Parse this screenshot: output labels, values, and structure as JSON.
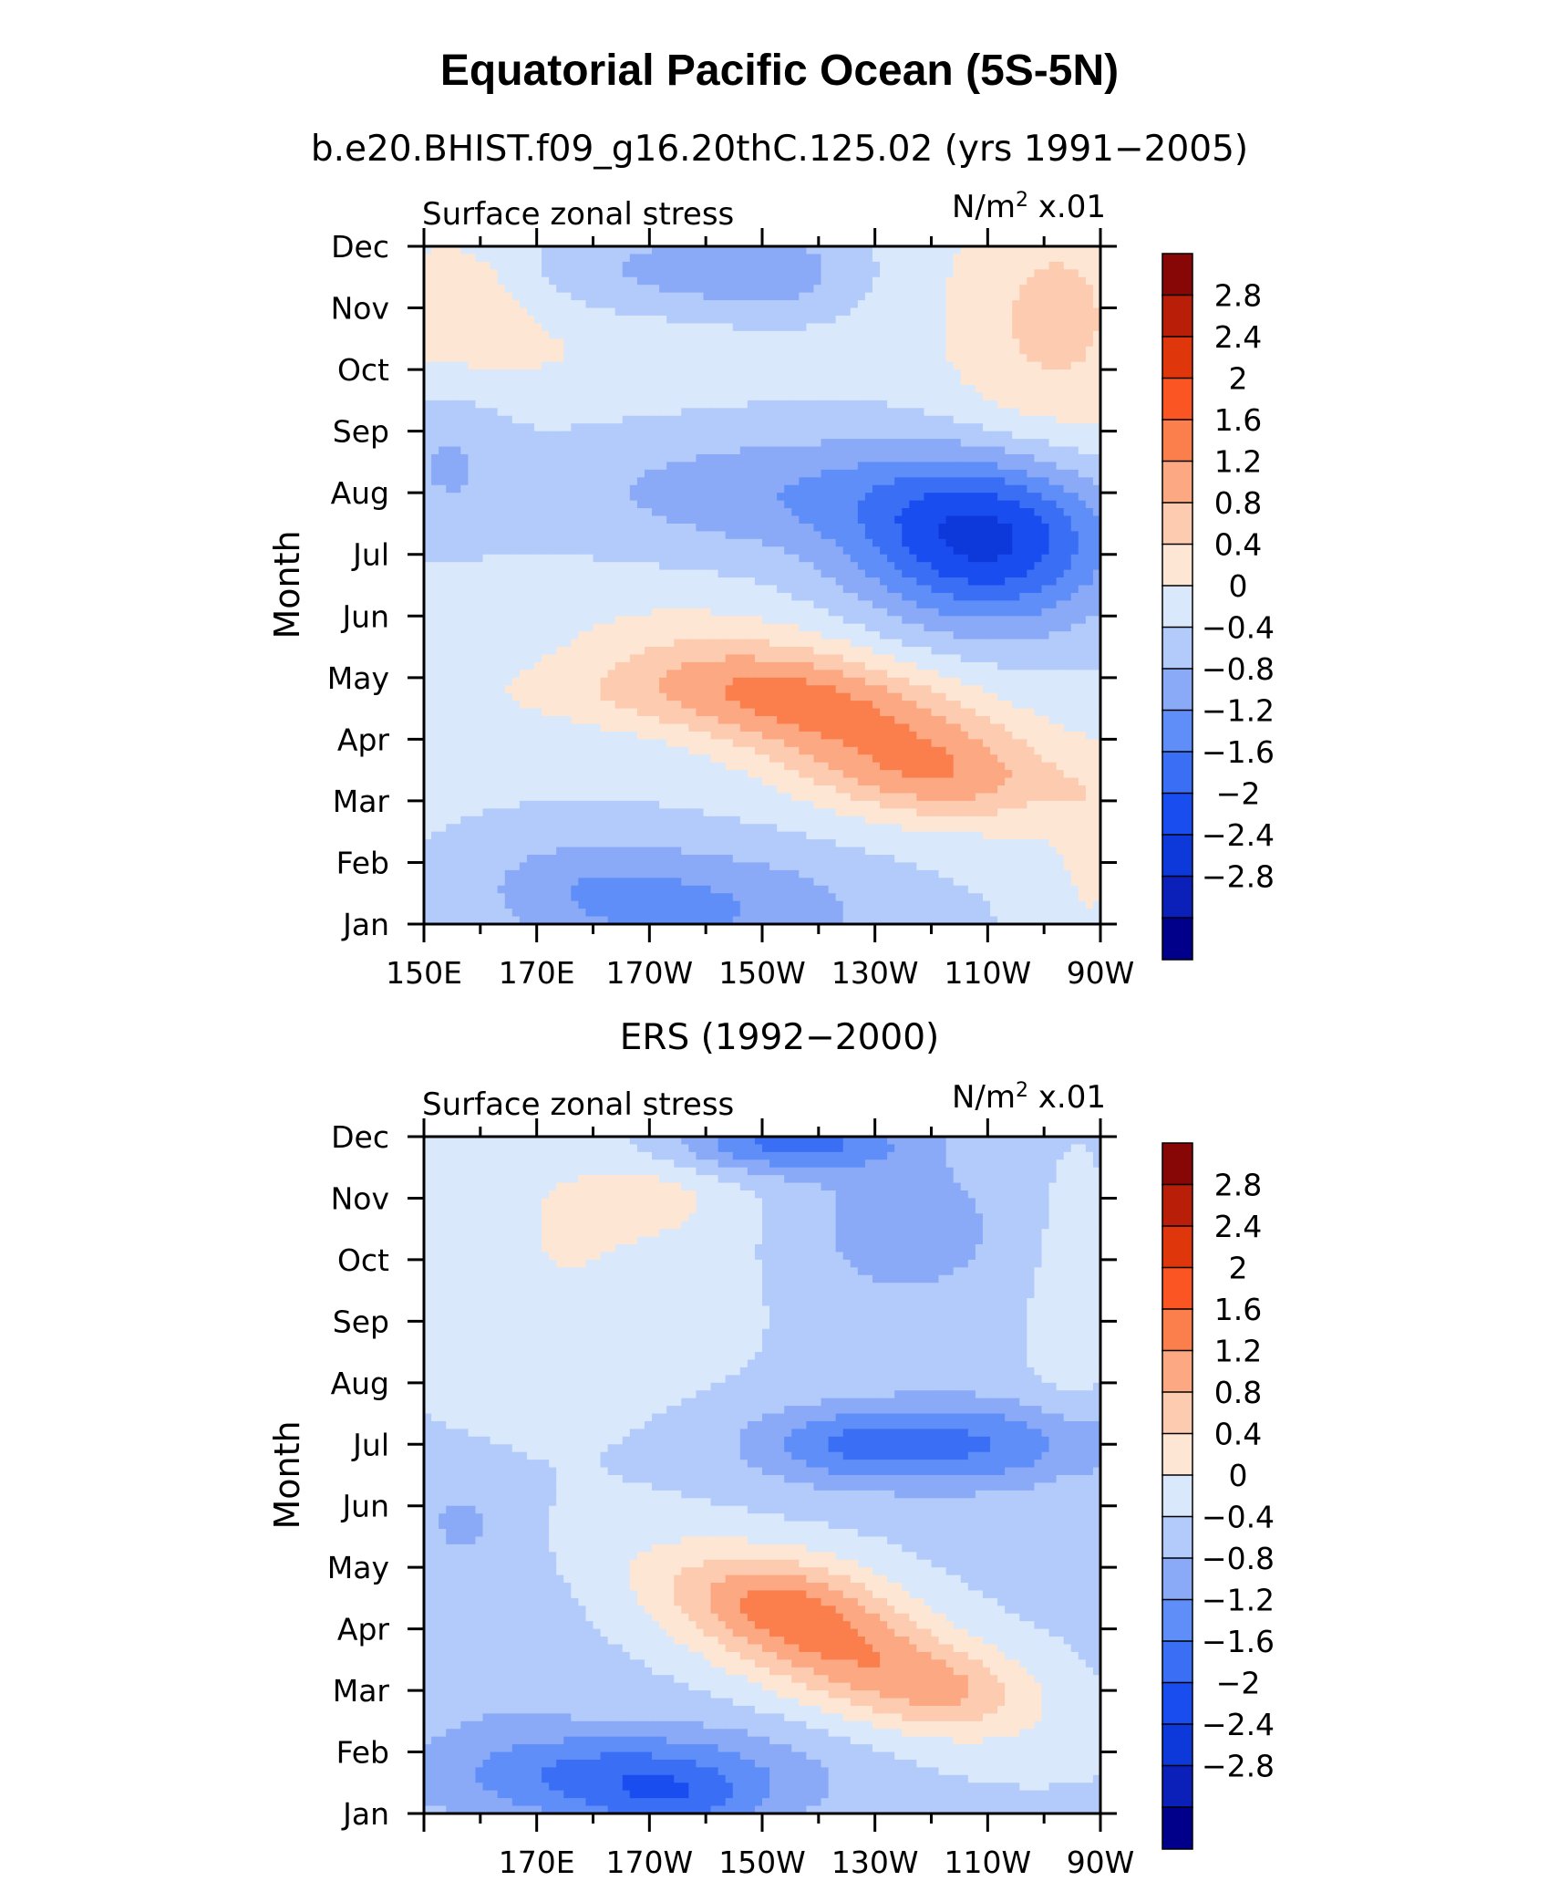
{
  "figure": {
    "main_title": "Equatorial Pacific Ocean (5S-5N)",
    "top_subtitle": "b.e20.BHIST.f09_g16.20thC.125.02 (yrs 1991−2005)",
    "bottom_subtitle": "ERS (1992−2000)"
  },
  "chart_data": [
    {
      "type": "heatmap",
      "name": "model",
      "panel_left_label": "Surface zonal stress",
      "units_main": "N/m",
      "units_sup": "2",
      "units_scale": "x.01",
      "ylabel": "Month",
      "yticks": [
        "Jan",
        "Feb",
        "Mar",
        "Apr",
        "May",
        "Jun",
        "Jul",
        "Aug",
        "Sep",
        "Oct",
        "Nov",
        "Dec"
      ],
      "xticks": [
        {
          "lon": 150,
          "label": "150E"
        },
        {
          "lon": 170,
          "label": "170E"
        },
        {
          "lon": 190,
          "label": "170W"
        },
        {
          "lon": 210,
          "label": "150W"
        },
        {
          "lon": 230,
          "label": "130W"
        },
        {
          "lon": 250,
          "label": "110W"
        },
        {
          "lon": 270,
          "label": "90W"
        }
      ],
      "xlim": [
        150,
        270
      ],
      "ylim": [
        1,
        12
      ],
      "blobs": [
        {
          "lon": 225,
          "mon": 4.3,
          "amp": 1.6,
          "slon": 26,
          "smon": 0.8,
          "tilt": -0.025
        },
        {
          "lon": 190,
          "mon": 4.75,
          "amp": 0.5,
          "slon": 25,
          "smon": 0.45
        },
        {
          "lon": 240,
          "mon": 3.3,
          "amp": 0.5,
          "slon": 14,
          "smon": 0.45
        },
        {
          "lon": 250,
          "mon": 7.2,
          "amp": -2.1,
          "slon": 16,
          "smon": 0.95
        },
        {
          "lon": 215,
          "mon": 8.0,
          "amp": -0.75,
          "slon": 28,
          "smon": 0.7
        },
        {
          "lon": 200,
          "mon": 1.2,
          "amp": -0.85,
          "slon": 22,
          "smon": 0.7
        },
        {
          "lon": 178,
          "mon": 1.7,
          "amp": -0.45,
          "slon": 14,
          "smon": 0.6
        },
        {
          "lon": 195,
          "mon": 11.6,
          "amp": -0.55,
          "slon": 18,
          "smon": 0.55
        },
        {
          "lon": 212,
          "mon": 11.6,
          "amp": -0.45,
          "slon": 9,
          "smon": 0.45
        },
        {
          "lon": 262,
          "mon": 10.8,
          "amp": 0.85,
          "slon": 15,
          "smon": 1.8
        },
        {
          "lon": 155,
          "mon": 11.3,
          "amp": 0.6,
          "slon": 10,
          "smon": 0.7
        },
        {
          "lon": 154,
          "mon": 8.5,
          "amp": -0.45,
          "slon": 7,
          "smon": 0.8
        },
        {
          "lon": 170,
          "mon": 10.3,
          "amp": 0.35,
          "slon": 25,
          "smon": 0.6
        },
        {
          "lon": 268,
          "mon": 2.0,
          "amp": 0.4,
          "slon": 4,
          "smon": 1.2
        }
      ],
      "base": 0.05
    },
    {
      "type": "heatmap",
      "name": "observed",
      "panel_left_label": "Surface zonal stress",
      "units_main": "N/m",
      "units_sup": "2",
      "units_scale": "x.01",
      "ylabel": "Month",
      "yticks": [
        "Jan",
        "Feb",
        "Mar",
        "Apr",
        "May",
        "Jun",
        "Jul",
        "Aug",
        "Sep",
        "Oct",
        "Nov",
        "Dec"
      ],
      "xticks": [
        {
          "lon": 170,
          "label": "170E"
        },
        {
          "lon": 190,
          "label": "170W"
        },
        {
          "lon": 210,
          "label": "150W"
        },
        {
          "lon": 230,
          "label": "130W"
        },
        {
          "lon": 250,
          "label": "110W"
        },
        {
          "lon": 270,
          "label": "90W"
        }
      ],
      "xlim": [
        150,
        270
      ],
      "ylim": [
        1,
        12
      ],
      "blobs": [
        {
          "lon": 222,
          "mon": 3.8,
          "amp": 1.75,
          "slon": 22,
          "smon": 0.75,
          "tilt": -0.03
        },
        {
          "lon": 215,
          "mon": 4.6,
          "amp": 0.5,
          "slon": 12,
          "smon": 0.5
        },
        {
          "lon": 245,
          "mon": 3.0,
          "amp": 0.4,
          "slon": 10,
          "smon": 0.4
        },
        {
          "lon": 185,
          "mon": 1.6,
          "amp": -1.3,
          "slon": 22,
          "smon": 0.55
        },
        {
          "lon": 195,
          "mon": 1.1,
          "amp": -0.6,
          "slon": 10,
          "smon": 0.4
        },
        {
          "lon": 245,
          "mon": 7.0,
          "amp": -1.1,
          "slon": 22,
          "smon": 0.5
        },
        {
          "lon": 225,
          "mon": 7.0,
          "amp": -0.5,
          "slon": 12,
          "smon": 0.4
        },
        {
          "lon": 215,
          "mon": 11.9,
          "amp": -1.3,
          "slon": 14,
          "smon": 0.35
        },
        {
          "lon": 235,
          "mon": 10.5,
          "amp": -0.6,
          "slon": 12,
          "smon": 0.8
        },
        {
          "lon": 175,
          "mon": 10.0,
          "amp": 0.5,
          "slon": 22,
          "smon": 1.8
        },
        {
          "lon": 190,
          "mon": 11.0,
          "amp": 0.4,
          "slon": 10,
          "smon": 0.4
        },
        {
          "lon": 157,
          "mon": 5.8,
          "amp": -0.35,
          "slon": 6,
          "smon": 0.5
        },
        {
          "lon": 160,
          "mon": 3.8,
          "amp": -0.25,
          "slon": 10,
          "smon": 1.2
        },
        {
          "lon": 265,
          "mon": 9.0,
          "amp": 0.3,
          "slon": 6,
          "smon": 2.0
        }
      ],
      "base": -0.1
    }
  ],
  "colorbar": {
    "labels": [
      "2.8",
      "2.4",
      "2",
      "1.6",
      "1.2",
      "0.8",
      "0.4",
      "0",
      "−0.4",
      "−0.8",
      "−1.2",
      "−1.6",
      "−2",
      "−2.4",
      "−2.8"
    ],
    "levels": [
      -2.8,
      -2.4,
      -2.0,
      -1.6,
      -1.2,
      -0.8,
      -0.4,
      0,
      0.4,
      0.8,
      1.2,
      1.6,
      2.0,
      2.4,
      2.8
    ],
    "colors": [
      "#00008b",
      "#0a20b9",
      "#0d38da",
      "#1a4df0",
      "#3a6ef5",
      "#5f8ef8",
      "#8aaaf8",
      "#b3cbfa",
      "#d9e8fb",
      "#fde7d4",
      "#fccbb0",
      "#fba883",
      "#fb7e4d",
      "#fa5523",
      "#e0360c",
      "#b81e08",
      "#870606"
    ]
  }
}
